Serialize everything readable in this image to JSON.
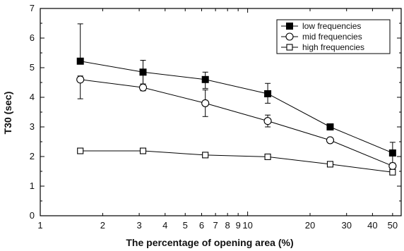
{
  "chart_data": {
    "type": "line",
    "title": "",
    "xlabel": "The percentage of opening area (%)",
    "ylabel": "T30 (sec)",
    "x_scale": "log",
    "xlim": [
      1,
      55
    ],
    "ylim": [
      0,
      7
    ],
    "x_ticks": [
      1,
      2,
      3,
      4,
      5,
      6,
      7,
      8,
      9,
      10,
      20,
      30,
      40,
      50
    ],
    "x_tick_labels": [
      "1",
      "2",
      "3",
      "4",
      "5",
      "6",
      "7",
      "8",
      "9",
      "10",
      "20",
      "30",
      "40",
      "50"
    ],
    "y_ticks": [
      0,
      1,
      2,
      3,
      4,
      5,
      6,
      7
    ],
    "y_tick_labels": [
      "0",
      "1",
      "2",
      "3",
      "4",
      "5",
      "6",
      "7"
    ],
    "grid": false,
    "legend_position": "top-right",
    "x": [
      1.56,
      3.13,
      6.25,
      12.5,
      25,
      50
    ],
    "series": [
      {
        "name": "low frequencies",
        "marker": "filled-square",
        "color": "#000000",
        "values": [
          5.22,
          4.85,
          4.6,
          4.12,
          3.0,
          2.12
        ],
        "error_low": [
          5.22,
          4.45,
          4.3,
          3.8,
          3.0,
          1.78
        ],
        "error_high": [
          6.48,
          5.25,
          4.85,
          4.47,
          3.0,
          2.48
        ]
      },
      {
        "name": "mid frequencies",
        "marker": "open-circle",
        "color": "#000000",
        "values": [
          4.6,
          4.33,
          3.8,
          3.2,
          2.55,
          1.68
        ],
        "error_low": [
          3.95,
          4.22,
          3.35,
          3.0,
          2.55,
          1.6
        ],
        "error_high": [
          4.72,
          4.45,
          4.25,
          3.4,
          2.55,
          1.76
        ]
      },
      {
        "name": "high frequencies",
        "marker": "open-square",
        "color": "#000000",
        "values": [
          2.19,
          2.19,
          2.05,
          1.99,
          1.74,
          1.47
        ],
        "error_low": [
          2.19,
          2.19,
          2.0,
          1.99,
          1.74,
          1.47
        ],
        "error_high": [
          2.19,
          2.19,
          2.1,
          1.99,
          1.74,
          1.47
        ]
      }
    ]
  }
}
